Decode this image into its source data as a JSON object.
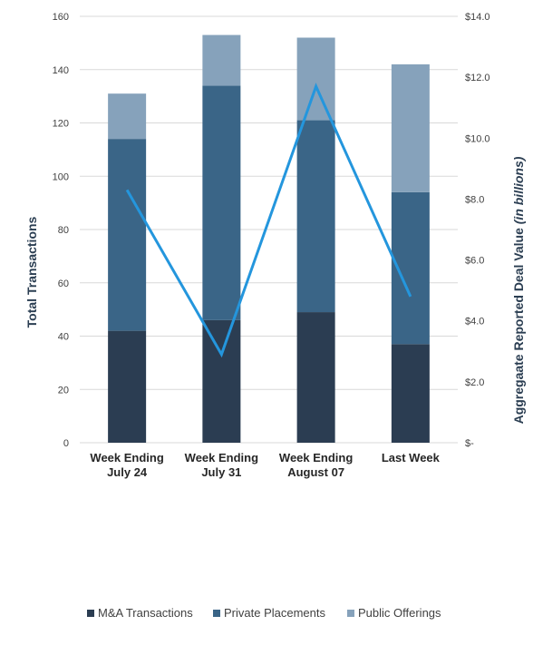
{
  "chart_data": {
    "type": "bar",
    "stacked": true,
    "categories": [
      [
        "Week Ending",
        "July 24"
      ],
      [
        "Week Ending",
        "July 31"
      ],
      [
        "Week Ending",
        "August 07"
      ],
      [
        "Last Week"
      ]
    ],
    "series": [
      {
        "name": "M&A Transactions",
        "color": "#2b3d52",
        "values": [
          42,
          46,
          49,
          37
        ]
      },
      {
        "name": "Private Placements",
        "color": "#3a6587",
        "values": [
          72,
          88,
          72,
          57
        ]
      },
      {
        "name": "Public Offerings",
        "color": "#86a2bb",
        "values": [
          17,
          19,
          31,
          48
        ]
      }
    ],
    "line_series": {
      "axis": "right",
      "color": "#2496dd",
      "values": [
        8.3,
        2.9,
        11.7,
        4.8
      ]
    },
    "ylabel": "Total Transactions",
    "ylim": [
      0,
      160
    ],
    "yticks": [
      "0",
      "20",
      "40",
      "60",
      "80",
      "100",
      "120",
      "140",
      "160"
    ],
    "y2label": "Aggregaate Reported Deal Value",
    "y2label_italic": "(in billions)",
    "y2lim": [
      0,
      14
    ],
    "y2ticks": [
      "$-",
      "$2.0",
      "$4.0",
      "$6.0",
      "$8.0",
      "$10.0",
      "$12.0",
      "$14.0"
    ],
    "grid": true,
    "legend_position": "bottom"
  }
}
